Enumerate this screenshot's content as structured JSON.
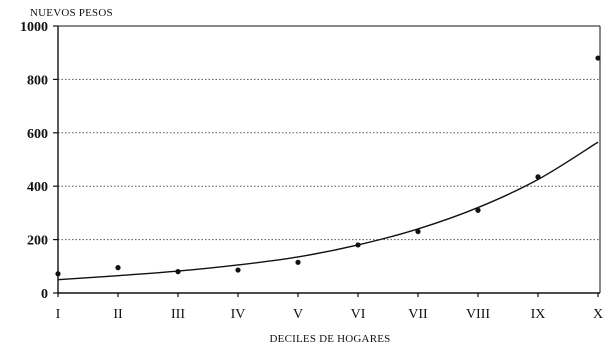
{
  "chart_data": {
    "type": "scatter",
    "title": "",
    "ylabel": "NUEVOS PESOS",
    "xlabel": "DECILES DE HOGARES",
    "categories": [
      "I",
      "II",
      "III",
      "IV",
      "V",
      "VI",
      "VII",
      "VIII",
      "IX",
      "X"
    ],
    "ylim": [
      0,
      1000
    ],
    "yticks": [
      0,
      200,
      400,
      600,
      800,
      1000
    ],
    "grid": "horizontal-dotted",
    "series": [
      {
        "kind": "points",
        "values": [
          72,
          95,
          80,
          86,
          115,
          180,
          230,
          310,
          435,
          880
        ]
      },
      {
        "kind": "trend",
        "values": [
          50,
          65,
          82,
          105,
          135,
          180,
          240,
          320,
          425,
          565
        ]
      }
    ]
  }
}
